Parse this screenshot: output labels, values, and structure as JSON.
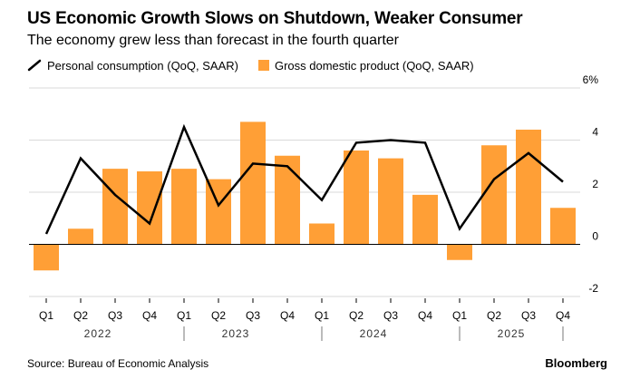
{
  "title": "US Economic Growth Slows on Shutdown, Weaker Consumer",
  "subtitle": "The economy grew less than forecast in the fourth quarter",
  "source": "Source: Bureau of Economic Analysis",
  "brand": "Bloomberg",
  "colors": {
    "bar": "#ff9f36",
    "line": "#000000",
    "grid": "#d9d9d9",
    "axis": "#000000"
  },
  "chart_data": {
    "type": "bar",
    "categories": [
      "Q1",
      "Q2",
      "Q3",
      "Q4",
      "Q1",
      "Q2",
      "Q3",
      "Q4",
      "Q1",
      "Q2",
      "Q3",
      "Q4",
      "Q1",
      "Q2",
      "Q3",
      "Q4"
    ],
    "years": [
      {
        "label": "2022",
        "quarters": 4
      },
      {
        "label": "2023",
        "quarters": 4
      },
      {
        "label": "2024",
        "quarters": 4
      },
      {
        "label": "2025",
        "quarters": 4
      }
    ],
    "series": [
      {
        "name": "Gross domestic product (QoQ, SAAR)",
        "type": "bar",
        "values": [
          -1.0,
          0.6,
          2.9,
          2.8,
          2.9,
          2.5,
          4.7,
          3.4,
          0.8,
          3.6,
          3.3,
          1.9,
          -0.6,
          3.8,
          4.4,
          1.4
        ]
      },
      {
        "name": "Personal consumption (QoQ, SAAR)",
        "type": "line",
        "values": [
          0.4,
          3.3,
          1.9,
          0.8,
          4.5,
          1.5,
          3.1,
          3.0,
          1.7,
          3.9,
          4.0,
          3.9,
          0.6,
          2.5,
          3.5,
          2.4
        ]
      }
    ],
    "yticks": [
      {
        "value": 6,
        "label": "6%"
      },
      {
        "value": 4,
        "label": "4"
      },
      {
        "value": 2,
        "label": "2"
      },
      {
        "value": 0,
        "label": "0"
      },
      {
        "value": -2,
        "label": "-2"
      }
    ],
    "ylim": [
      -2,
      6
    ],
    "grid": true,
    "legend_position": "top-left"
  }
}
